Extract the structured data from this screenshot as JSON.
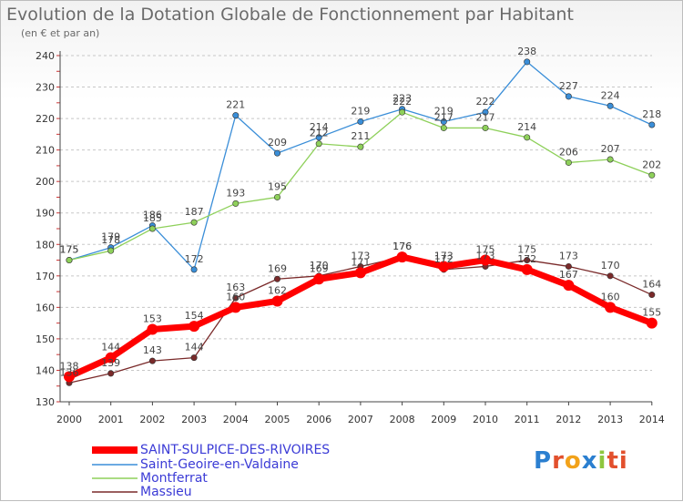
{
  "header": {
    "title": "Evolution de la Dotation Globale de Fonctionnement par Habitant",
    "subtitle": "(en € et par an)"
  },
  "logo": {
    "letters": [
      "P",
      "r",
      "o",
      "x",
      "i",
      "ti"
    ]
  },
  "chart_data": {
    "type": "line",
    "title": "Evolution de la Dotation Globale de Fonctionnement par Habitant",
    "subtitle": "(en € et par an)",
    "xlabel": "",
    "ylabel": "",
    "ylim": [
      130,
      240
    ],
    "yticks": [
      130,
      140,
      150,
      160,
      170,
      180,
      190,
      200,
      210,
      220,
      230,
      240
    ],
    "x": [
      "2000",
      "2001",
      "2002",
      "2003",
      "2004",
      "2005",
      "2006",
      "2007",
      "2008",
      "2009",
      "2010",
      "2011",
      "2012",
      "2013",
      "2014"
    ],
    "grid": "horizontal dashed",
    "legend_position": "bottom-left",
    "series": [
      {
        "name": "SAINT-SULPICE-DES-RIVOIRES",
        "color": "#ff0000",
        "emphasis": true,
        "values": [
          138,
          144,
          153,
          154,
          160,
          162,
          169,
          171,
          176,
          173,
          175,
          172,
          167,
          160,
          155
        ]
      },
      {
        "name": "Saint-Geoire-en-Valdaine",
        "color": "#3a8ed8",
        "values": [
          175,
          179,
          186,
          172,
          221,
          209,
          214,
          219,
          223,
          219,
          222,
          238,
          227,
          224,
          218
        ]
      },
      {
        "name": "Montferrat",
        "color": "#8ed05a",
        "values": [
          175,
          178,
          185,
          187,
          193,
          195,
          212,
          211,
          222,
          217,
          217,
          214,
          206,
          207,
          202
        ]
      },
      {
        "name": "Massieu",
        "color": "#7a2a2a",
        "values": [
          136,
          139,
          143,
          144,
          163,
          169,
          170,
          173,
          176,
          172,
          173,
          175,
          173,
          170,
          164
        ]
      }
    ]
  }
}
